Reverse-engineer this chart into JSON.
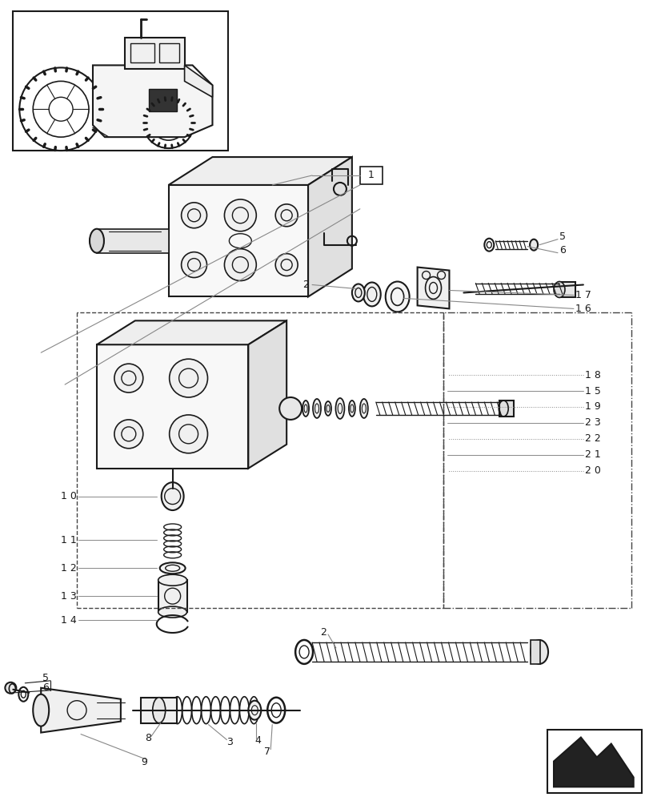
{
  "bg_color": "#ffffff",
  "line_color": "#1a1a1a",
  "gray_color": "#888888",
  "light_gray": "#cccccc",
  "fig_width": 8.12,
  "fig_height": 10.0,
  "dpi": 100
}
